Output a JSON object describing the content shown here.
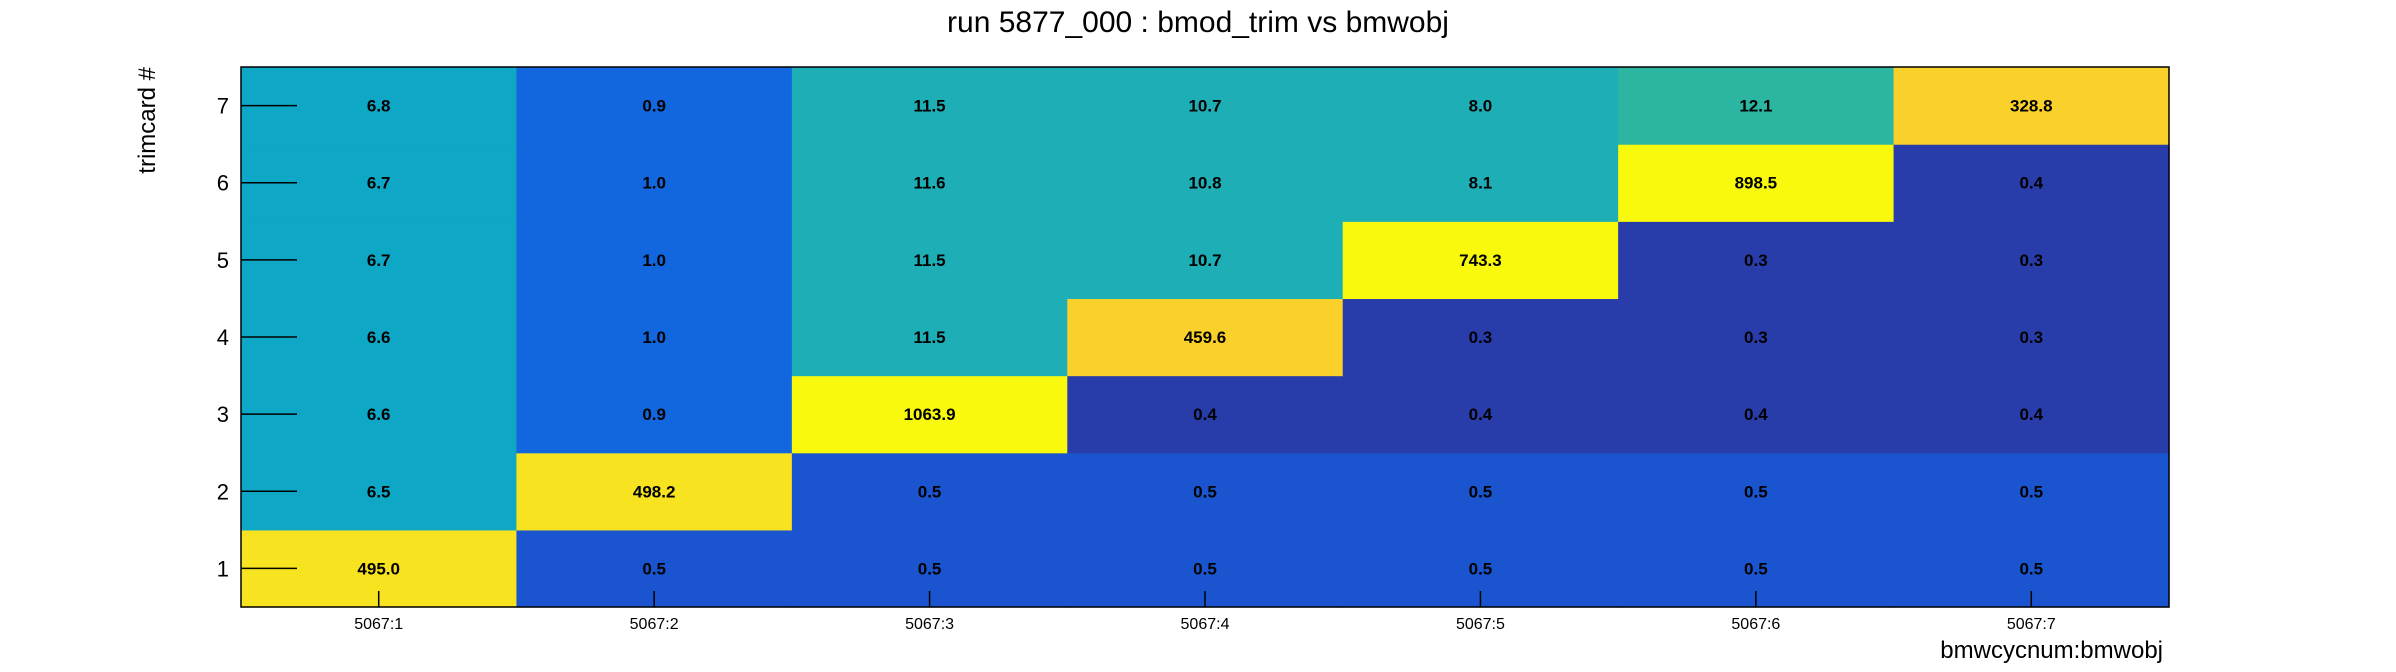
{
  "chart_data": {
    "type": "heatmap",
    "title": "run 5877_000 : bmod_trim vs bmwobj",
    "xlabel": "bmwcycnum:bmwobj",
    "ylabel": "trimcard #",
    "x_categories": [
      "5067:1",
      "5067:2",
      "5067:3",
      "5067:4",
      "5067:5",
      "5067:6",
      "5067:7"
    ],
    "y_categories": [
      "1",
      "2",
      "3",
      "4",
      "5",
      "6",
      "7"
    ],
    "values": [
      [
        495.0,
        0.5,
        0.5,
        0.5,
        0.5,
        0.5,
        0.5
      ],
      [
        6.5,
        498.2,
        0.5,
        0.5,
        0.5,
        0.5,
        0.5
      ],
      [
        6.6,
        0.9,
        1063.9,
        0.4,
        0.4,
        0.4,
        0.4
      ],
      [
        6.6,
        1.0,
        11.5,
        459.6,
        0.3,
        0.3,
        0.3
      ],
      [
        6.7,
        1.0,
        11.5,
        10.7,
        743.3,
        0.3,
        0.3
      ],
      [
        6.7,
        1.0,
        11.6,
        10.8,
        8.1,
        898.5,
        0.4
      ],
      [
        6.8,
        0.9,
        11.5,
        10.7,
        8.0,
        12.1,
        328.8
      ]
    ],
    "labels": [
      [
        "495.0",
        "0.5",
        "0.5",
        "0.5",
        "0.5",
        "0.5",
        "0.5"
      ],
      [
        "6.5",
        "498.2",
        "0.5",
        "0.5",
        "0.5",
        "0.5",
        "0.5"
      ],
      [
        "6.6",
        "0.9",
        "1063.9",
        "0.4",
        "0.4",
        "0.4",
        "0.4"
      ],
      [
        "6.6",
        "1.0",
        "11.5",
        "459.6",
        "0.3",
        "0.3",
        "0.3"
      ],
      [
        "6.7",
        "1.0",
        "11.5",
        "10.7",
        "743.3",
        "0.3",
        "0.3"
      ],
      [
        "6.7",
        "1.0",
        "11.6",
        "10.8",
        "8.1",
        "898.5",
        "0.4"
      ],
      [
        "6.8",
        "0.9",
        "11.5",
        "10.7",
        "8.0",
        "12.1",
        "328.8"
      ]
    ],
    "cell_colors": [
      [
        "#f7e31f",
        "#1a55cf",
        "#1a55cf",
        "#1a55cf",
        "#1a55cf",
        "#1a55cf",
        "#1a55cf"
      ],
      [
        "#0ea7c6",
        "#f7e31f",
        "#1a55cf",
        "#1a55cf",
        "#1a55cf",
        "#1a55cf",
        "#1a55cf"
      ],
      [
        "#0ea7c6",
        "#1267de",
        "#f9f90d",
        "#283daa",
        "#283daa",
        "#283daa",
        "#283daa"
      ],
      [
        "#0ea7c6",
        "#1267de",
        "#1eaeb6",
        "#fad12a",
        "#283daa",
        "#283daa",
        "#283daa"
      ],
      [
        "#0ea7c6",
        "#1267de",
        "#1eaeb6",
        "#1eaeb6",
        "#f9f90d",
        "#283daa",
        "#283daa"
      ],
      [
        "#0ea7c6",
        "#1267de",
        "#1eaeb6",
        "#1eaeb6",
        "#1eaeb6",
        "#f9f90d",
        "#283daa"
      ],
      [
        "#0ea7c6",
        "#1267de",
        "#1eaeb6",
        "#1eaeb6",
        "#1eaeb6",
        "#2cb5a1",
        "#fad12a"
      ]
    ],
    "color_scale": "yellow = high, blue = low",
    "grid": false,
    "legend": "none"
  }
}
